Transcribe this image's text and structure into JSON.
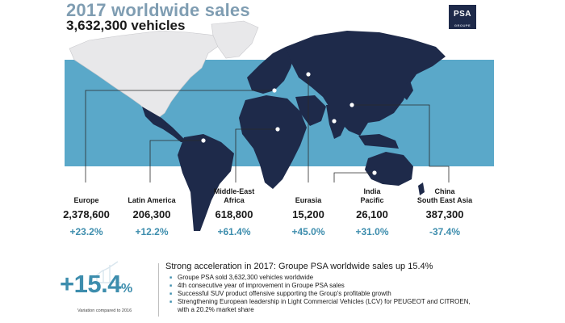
{
  "header": {
    "title": "2017 worldwide sales",
    "subtitle": "3,632,300 vehicles"
  },
  "logo": {
    "text": "PSA",
    "subtext": "GROUPE"
  },
  "colors": {
    "accent": "#3d8dad",
    "title": "#7f9db2",
    "ocean_band": "#5aa8c9",
    "land_dark": "#1e2a4a",
    "land_light": "#e8e8ea"
  },
  "regions": [
    {
      "name": "Europe",
      "value": "2,378,600",
      "change": "+23.2%"
    },
    {
      "name": "Latin America",
      "value": "206,300",
      "change": "+12.2%"
    },
    {
      "name": "Middle-East\nAfrica",
      "value": "618,800",
      "change": "+61.4%"
    },
    {
      "name": "Eurasia",
      "value": "15,200",
      "change": "+45.0%"
    },
    {
      "name": "India\nPacific",
      "value": "26,100",
      "change": "+31.0%"
    },
    {
      "name": "China\nSouth East Asia",
      "value": "387,300",
      "change": "-37.4%"
    }
  ],
  "summary": {
    "big_number": "+15.4",
    "big_unit": "%",
    "caption": "Variation compared to 2016",
    "headline": "Strong acceleration in 2017: Groupe PSA worldwide sales up 15.4%",
    "bullets": [
      "Groupe PSA sold 3,632,300  vehicles worldwide",
      "4th consecutive year of improvement  in Groupe PSA sales",
      "Successful SUV product offensive supporting the Group's profitable  growth",
      "Strengthening European leadership in Light Commercial Vehicles (LCV) for PEUGEOT and CITROEN,  with a 20.2% market share"
    ]
  }
}
